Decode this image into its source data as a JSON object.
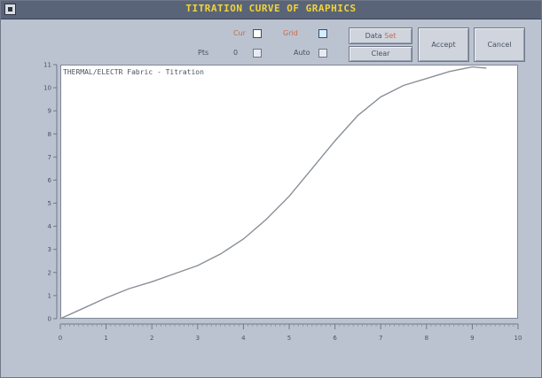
{
  "window": {
    "title": "TITRATION CURVE OF GRAPHICS",
    "accent_color": "#f2d437"
  },
  "toolbar": {
    "toggle_a_label": "Cur",
    "toggle_b_label": "Grid",
    "field_a_label": "Pts",
    "field_a_label_2": "0",
    "field_b_label": "Auto",
    "buttons": {
      "top_left": "Data",
      "top_left_accent": "Set",
      "bottom_left": "Clear",
      "middle": "Accept",
      "right": "Cancel"
    }
  },
  "plot": {
    "title": "THERMAL/ELECTR Fabric - Titration"
  },
  "chart_data": {
    "type": "line",
    "title": "THERMAL/ELECTR Fabric - Titration",
    "xlim": [
      0,
      10
    ],
    "ylim": [
      0,
      11
    ],
    "x_ticks": [
      0,
      1,
      2,
      3,
      4,
      5,
      6,
      7,
      8,
      9,
      10
    ],
    "y_ticks": [
      0,
      1,
      2,
      3,
      4,
      5,
      6,
      7,
      8,
      9,
      10,
      11
    ],
    "grid": false,
    "series": [
      {
        "color": "#8a8f98",
        "x": [
          0,
          0.5,
          1.0,
          1.5,
          2.0,
          2.5,
          3.0,
          3.5,
          4.0,
          4.5,
          5.0,
          5.5,
          6.0,
          6.5,
          7.0,
          7.5,
          8.0,
          8.5,
          9.0,
          9.3
        ],
        "y": [
          0,
          0.45,
          0.9,
          1.3,
          1.6,
          1.95,
          2.3,
          2.8,
          3.45,
          4.3,
          5.3,
          6.5,
          7.7,
          8.8,
          9.6,
          10.1,
          10.4,
          10.7,
          10.9,
          10.85
        ]
      }
    ]
  }
}
